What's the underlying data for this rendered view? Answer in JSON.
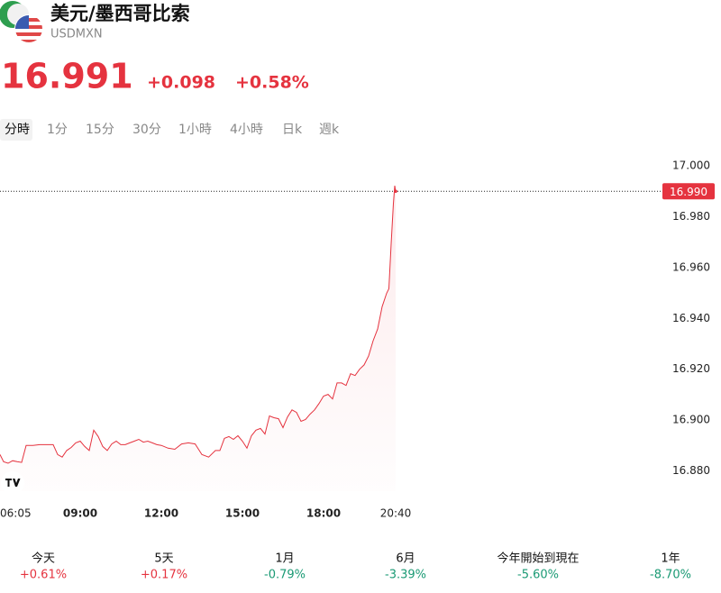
{
  "header": {
    "title": "美元/墨西哥比索",
    "symbol": "USDMXN",
    "price": "16.991",
    "change": "+0.098",
    "change_percent": "+0.58%"
  },
  "tabs": {
    "items": [
      "分時",
      "1分",
      "15分",
      "30分",
      "1小時",
      "4小時",
      "日k",
      "週k"
    ],
    "selected": 0
  },
  "chart_data": {
    "type": "line",
    "color": "#e5333f",
    "x": [
      "06:02",
      "06:10",
      "06:20",
      "06:30",
      "06:40",
      "06:50",
      "07:00",
      "07:15",
      "07:30",
      "07:45",
      "08:00",
      "08:10",
      "08:20",
      "08:30",
      "08:40",
      "08:50",
      "09:00",
      "09:10",
      "09:20",
      "09:30",
      "09:40",
      "09:50",
      "10:00",
      "10:10",
      "10:20",
      "10:30",
      "10:40",
      "10:50",
      "11:00",
      "11:10",
      "11:20",
      "11:30",
      "11:40",
      "11:50",
      "12:00",
      "12:15",
      "12:30",
      "12:45",
      "13:00",
      "13:15",
      "13:30",
      "13:45",
      "14:00",
      "14:10",
      "14:20",
      "14:30",
      "14:40",
      "14:50",
      "15:00",
      "15:10",
      "15:20",
      "15:30",
      "15:40",
      "15:50",
      "16:00",
      "16:10",
      "16:20",
      "16:30",
      "16:40",
      "16:50",
      "17:00",
      "17:10",
      "17:20",
      "17:30",
      "17:40",
      "17:50",
      "18:00",
      "18:10",
      "18:20",
      "18:30",
      "18:40",
      "18:50",
      "19:00",
      "19:10",
      "19:20",
      "19:30",
      "19:40",
      "19:50",
      "20:00",
      "20:10",
      "20:20",
      "20:25",
      "20:30",
      "20:35",
      "20:38",
      "20:40"
    ],
    "values": [
      16.8864,
      16.8836,
      16.883,
      16.884,
      16.8836,
      16.8833,
      16.89,
      16.89,
      16.8903,
      16.8903,
      16.8903,
      16.8864,
      16.8854,
      16.888,
      16.8892,
      16.891,
      16.8917,
      16.8896,
      16.888,
      16.896,
      16.8935,
      16.8896,
      16.888,
      16.8906,
      16.8917,
      16.8903,
      16.8903,
      16.891,
      16.8917,
      16.8924,
      16.8913,
      16.8917,
      16.891,
      16.8903,
      16.89,
      16.8889,
      16.8885,
      16.8906,
      16.891,
      16.8906,
      16.8864,
      16.8854,
      16.888,
      16.888,
      16.8928,
      16.8935,
      16.8924,
      16.8938,
      16.8917,
      16.8889,
      16.8938,
      16.896,
      16.8967,
      16.8945,
      16.9016,
      16.9009,
      16.9005,
      16.897,
      16.9012,
      16.904,
      16.903,
      16.8995,
      16.9002,
      16.9023,
      16.904,
      16.9065,
      16.9094,
      16.9101,
      16.9083,
      16.9146,
      16.9146,
      16.9136,
      16.9182,
      16.9175,
      16.92,
      16.9217,
      16.9252,
      16.9312,
      16.9358,
      16.9446,
      16.9499,
      16.9517,
      16.9693,
      16.9852,
      16.9922,
      16.99
    ],
    "xlim": [
      "06:02",
      "20:40"
    ],
    "xticks": [
      "06:05",
      "09:00",
      "12:00",
      "15:00",
      "18:00",
      "20:40"
    ],
    "ylim": [
      16.872,
      17.005
    ],
    "yticks": [
      {
        "value": 16.88,
        "label": "16.880"
      },
      {
        "value": 16.9,
        "label": "16.900"
      },
      {
        "value": 16.92,
        "label": "16.920"
      },
      {
        "value": 16.94,
        "label": "16.940"
      },
      {
        "value": 16.96,
        "label": "16.960"
      },
      {
        "value": 16.98,
        "label": "16.980"
      },
      {
        "value": 17,
        "label": "17.000"
      }
    ],
    "last": {
      "value": 16.99,
      "label": "16.990"
    }
  },
  "performance": [
    {
      "label": "今天",
      "value": "+0.61%",
      "color": "#e5333f"
    },
    {
      "label": "5天",
      "value": "+0.17%",
      "color": "#e5333f"
    },
    {
      "label": "1月",
      "value": "-0.79%",
      "color": "#1a9a74"
    },
    {
      "label": "6月",
      "value": "-3.39%",
      "color": "#1a9a74"
    },
    {
      "label": "今年開始到現在",
      "value": "-5.60%",
      "color": "#1a9a74"
    },
    {
      "label": "1年",
      "value": "-8.70%",
      "color": "#1a9a74"
    }
  ]
}
